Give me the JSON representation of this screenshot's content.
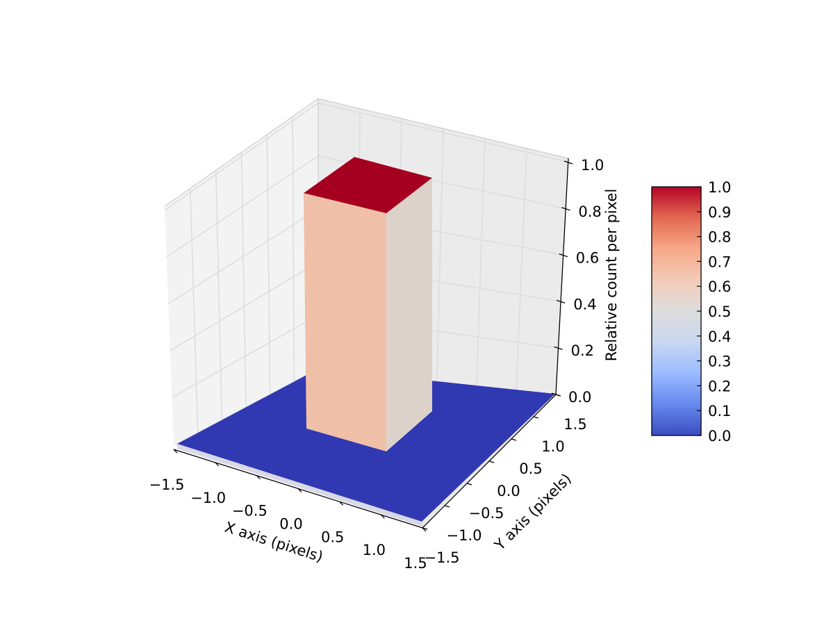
{
  "chart_data": {
    "type": "bar3d",
    "xlabel": "X axis (pixels)",
    "ylabel": "Y axis (pixels)",
    "zlabel": "Relative count per pixel",
    "xlim": [
      -1.5,
      1.5
    ],
    "ylim": [
      -1.5,
      1.5
    ],
    "zlim": [
      0.0,
      1.0
    ],
    "x_ticks": [
      "−1.5",
      "−1.0",
      "−0.5",
      "0.0",
      "0.5",
      "1.0",
      "1.5"
    ],
    "y_ticks": [
      "−1.5",
      "−1.0",
      "−0.5",
      "0.0",
      "0.5",
      "1.0",
      "1.5"
    ],
    "z_ticks": [
      "0.0",
      "0.2",
      "0.4",
      "0.6",
      "0.8",
      "1.0"
    ],
    "grid": true,
    "colormap": "coolwarm",
    "colors": {
      "floor": "#3038b2",
      "bar_top": "#a5001f",
      "bar_front": "#f0bfa8",
      "bar_side": "#ddd2ca",
      "colormap_stops": [
        "#3b4cc0",
        "#6788ee",
        "#9abbff",
        "#c9d7f0",
        "#dddddd",
        "#f2cbb7",
        "#f7a889",
        "#e26952",
        "#b40426"
      ]
    },
    "bars": [
      {
        "x": [
          -0.5,
          0.5
        ],
        "y": [
          -0.5,
          0.5
        ],
        "value": 1.0
      }
    ],
    "floor_value": 0.0,
    "colorbar": {
      "ticks": [
        "0.0",
        "0.1",
        "0.2",
        "0.3",
        "0.4",
        "0.5",
        "0.6",
        "0.7",
        "0.8",
        "0.9",
        "1.0"
      ],
      "range": [
        0.0,
        1.0
      ]
    }
  }
}
